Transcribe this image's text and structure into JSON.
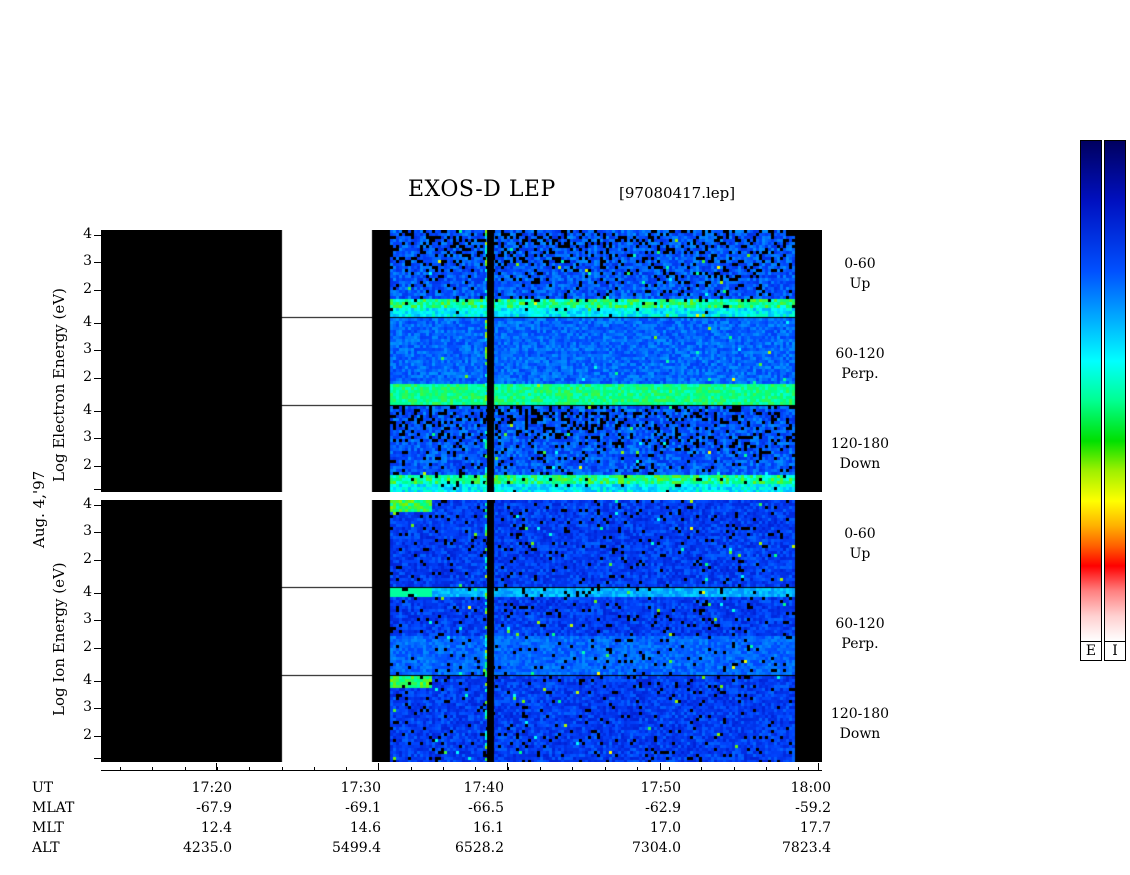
{
  "title": "EXOS-D LEP",
  "file_label": "[97080417.lep]",
  "date_label": "Aug. 4,'97",
  "electron_axis_label": "Log  Electron  Energy (eV)",
  "ion_axis_label": "Log  Ion  Energy (eV)",
  "y_tick_labels": [
    "4",
    "3",
    "2"
  ],
  "ion_bottom_tick_labels": [
    "4",
    "3",
    "2",
    "1"
  ],
  "band_labels": [
    {
      "range": "0-60",
      "dir": "Up"
    },
    {
      "range": "60-120",
      "dir": "Perp."
    },
    {
      "range": "120-180",
      "dir": "Down"
    }
  ],
  "colorbar_labels": [
    "E",
    "I"
  ],
  "colors": {
    "background": "#000000",
    "data_gap": "#ffffff",
    "spectrum_low": "#0000c8",
    "spectrum_mid": "#00ff80",
    "spectrum_high": "#ff0000"
  },
  "chart_data": {
    "type": "heatmap",
    "title": "EXOS-D LEP",
    "panels": [
      {
        "name": "Electron",
        "bands": [
          "0-60 Up",
          "60-120 Perp.",
          "120-180 Down"
        ],
        "y_ticks": [
          4,
          3,
          2
        ]
      },
      {
        "name": "Ion",
        "bands": [
          "0-60 Up",
          "60-120 Perp.",
          "120-180 Down"
        ],
        "y_ticks": [
          4,
          3,
          2,
          1
        ]
      }
    ],
    "x_axis": {
      "ticks": [
        "17:20",
        "17:30",
        "17:40",
        "17:50",
        "18:00"
      ],
      "rows": [
        {
          "name": "UT",
          "values": [
            "17:20",
            "17:30",
            "17:40",
            "17:50",
            "18:00"
          ]
        },
        {
          "name": "MLAT",
          "values": [
            "-67.9",
            "-69.1",
            "-66.5",
            "-62.9",
            "-59.2"
          ]
        },
        {
          "name": "MLT",
          "values": [
            "12.4",
            "14.6",
            "16.1",
            "17.0",
            "17.7"
          ]
        },
        {
          "name": "ALT",
          "values": [
            "4235.0",
            "5499.4",
            "6528.2",
            "7304.0",
            "7823.4"
          ]
        }
      ]
    },
    "data_gap_ut": [
      "17:25",
      "17:31"
    ],
    "data_start_ut": "17:32",
    "data_end_ut": "17:59"
  }
}
